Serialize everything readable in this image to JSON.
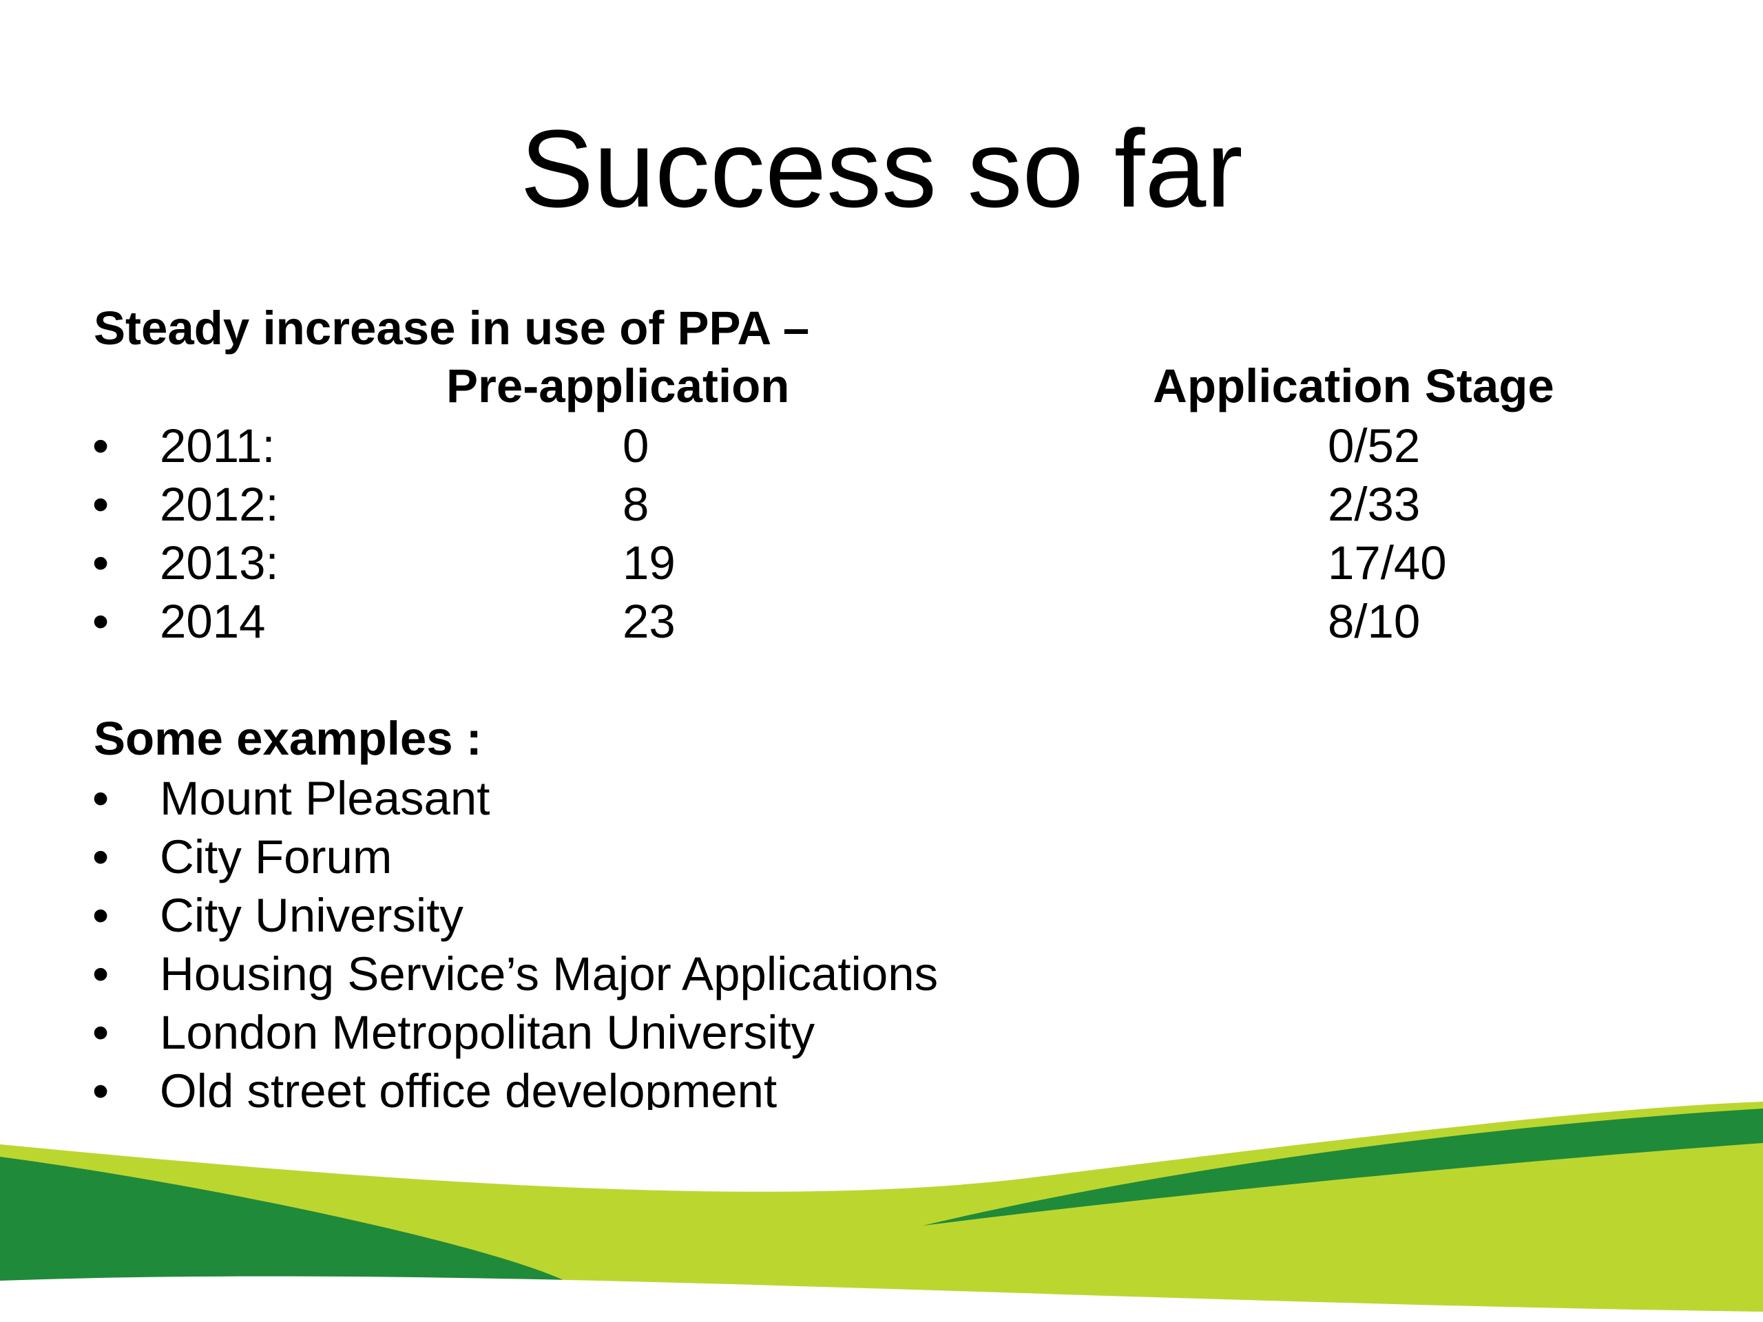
{
  "slide": {
    "title": "Success so far",
    "ppa_heading": "Steady increase in use of PPA –",
    "columns": {
      "pre_application": "Pre-application",
      "application_stage": "Application Stage"
    },
    "rows": [
      {
        "year": "2011:",
        "pre": "0",
        "app": "0/52"
      },
      {
        "year": "2012:",
        "pre": "8",
        "app": "2/33"
      },
      {
        "year": "2013:",
        "pre": "19",
        "app": "17/40"
      },
      {
        "year": "2014",
        "pre": "23",
        "app": "8/10"
      }
    ],
    "examples_heading": "Some examples :",
    "examples": [
      "Mount Pleasant",
      "City Forum",
      "City University",
      "Housing Service’s Major Applications",
      "London Metropolitan University",
      "Old street office development"
    ],
    "bullet_char": "•"
  },
  "colors": {
    "text": "#000000",
    "background": "#ffffff",
    "dark_green": "#1f8a3a",
    "lime_green": "#bcd630"
  }
}
